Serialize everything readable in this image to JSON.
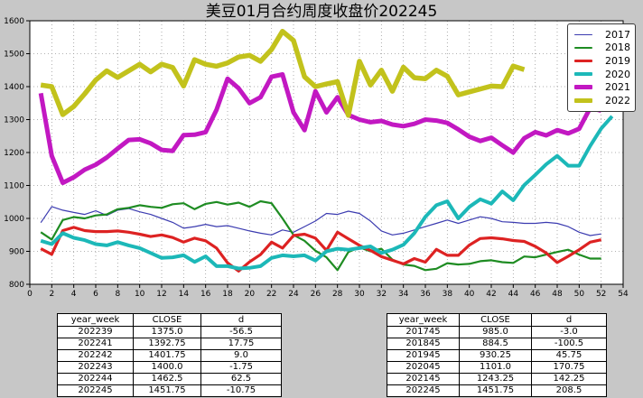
{
  "title": "美豆01月合约周度收盘价202245",
  "colors": {
    "figure_bg": "#c7c7c7",
    "plot_bg": "#ffffff",
    "grid": "#999999",
    "axis": "#000000",
    "tick_label": "#000000",
    "table_bg": "#ffffff",
    "table_border": "#000000"
  },
  "chart_data": {
    "type": "line",
    "title": "美豆01月合约周度收盘价202245",
    "xlim": [
      0,
      54
    ],
    "ylim": [
      800,
      1600
    ],
    "x_tick_step": 2,
    "y_tick_step": 100,
    "grid": true,
    "legend_position": "upper right",
    "series": [
      {
        "name": "2017",
        "color": "#3b3bb0",
        "line_width": 1.2,
        "start_week": 1,
        "values": [
          987,
          1036,
          1025,
          1018,
          1012,
          1023,
          1009,
          1025,
          1030,
          1020,
          1012,
          1000,
          988,
          970,
          975,
          982,
          975,
          978,
          970,
          962,
          955,
          950,
          965,
          958,
          975,
          992,
          1015,
          1012,
          1022,
          1015,
          992,
          962,
          950,
          955,
          965,
          975,
          985,
          995,
          985,
          995,
          1005,
          1000,
          990,
          988,
          985,
          985,
          988,
          985,
          975,
          958,
          948,
          953
        ]
      },
      {
        "name": "2018",
        "color": "#1e8c22",
        "line_width": 2.2,
        "start_week": 1,
        "values": [
          958,
          936,
          995,
          1004,
          1000,
          1009,
          1012,
          1028,
          1032,
          1040,
          1035,
          1032,
          1043,
          1046,
          1028,
          1044,
          1050,
          1042,
          1048,
          1035,
          1052,
          1046,
          1000,
          950,
          932,
          902,
          882,
          843,
          898,
          912,
          900,
          908,
          875,
          860,
          856,
          843,
          847,
          864,
          860,
          862,
          870,
          873,
          867,
          865,
          884.5,
          882,
          890,
          898,
          905,
          890,
          878,
          878
        ]
      },
      {
        "name": "2019",
        "color": "#dd2222",
        "line_width": 3.2,
        "start_week": 1,
        "values": [
          908,
          891,
          963,
          973,
          963,
          960,
          960,
          962,
          958,
          952,
          945,
          950,
          942,
          928,
          940,
          932,
          910,
          865,
          840,
          868,
          890,
          928,
          910,
          948,
          952,
          940,
          903,
          958,
          938,
          918,
          903,
          884,
          873,
          862,
          878,
          867,
          906,
          888,
          888,
          919,
          939,
          941,
          938,
          933,
          930.25,
          915,
          895,
          866,
          885,
          905,
          928,
          935
        ]
      },
      {
        "name": "2020",
        "color": "#1cb8b8",
        "line_width": 4,
        "start_week": 1,
        "values": [
          932,
          922,
          955,
          941,
          934,
          922,
          918,
          928,
          918,
          910,
          895,
          880,
          882,
          888,
          868,
          885,
          855,
          855,
          848,
          850,
          855,
          880,
          888,
          885,
          888,
          872,
          900,
          908,
          905,
          910,
          915,
          895,
          905,
          920,
          955,
          1005,
          1040,
          1052,
          1000,
          1035,
          1058,
          1045,
          1082,
          1055,
          1101,
          1132,
          1164,
          1190,
          1160,
          1160,
          1220,
          1273,
          1310
        ]
      },
      {
        "name": "2021",
        "color": "#c218c2",
        "line_width": 5,
        "start_week": 1,
        "values": [
          1380,
          1190,
          1108,
          1125,
          1148,
          1163,
          1185,
          1212,
          1238,
          1240,
          1228,
          1208,
          1205,
          1253,
          1254,
          1262,
          1330,
          1424,
          1395,
          1350,
          1368,
          1430,
          1437,
          1322,
          1268,
          1386,
          1322,
          1368,
          1314,
          1300,
          1292,
          1296,
          1285,
          1280,
          1287,
          1300,
          1297,
          1290,
          1270,
          1248,
          1235,
          1245,
          1222,
          1200,
          1243.25,
          1262,
          1252,
          1268,
          1258,
          1272,
          1335,
          1327
        ]
      },
      {
        "name": "2022",
        "color": "#c2c21c",
        "line_width": 5.5,
        "start_week": 1,
        "values": [
          1405,
          1400,
          1315,
          1340,
          1378,
          1420,
          1448,
          1428,
          1448,
          1468,
          1445,
          1468,
          1458,
          1402,
          1482,
          1468,
          1462,
          1472,
          1490,
          1495,
          1477,
          1513,
          1568,
          1540,
          1430,
          1400,
          1408,
          1415,
          1313,
          1477,
          1405,
          1450,
          1386,
          1459,
          1427,
          1424,
          1450,
          1431.5,
          1375,
          1384,
          1392.75,
          1401.75,
          1400,
          1462.5,
          1451.75
        ]
      }
    ]
  },
  "tables": [
    {
      "headers": [
        "year_week",
        "CLOSE",
        "d"
      ],
      "rows": [
        [
          "202239",
          "1375.0",
          "-56.5"
        ],
        [
          "202241",
          "1392.75",
          "17.75"
        ],
        [
          "202242",
          "1401.75",
          "9.0"
        ],
        [
          "202243",
          "1400.0",
          "-1.75"
        ],
        [
          "202244",
          "1462.5",
          "62.5"
        ],
        [
          "202245",
          "1451.75",
          "-10.75"
        ]
      ]
    },
    {
      "headers": [
        "year_week",
        "CLOSE",
        "d"
      ],
      "rows": [
        [
          "201745",
          "985.0",
          "-3.0"
        ],
        [
          "201845",
          "884.5",
          "-100.5"
        ],
        [
          "201945",
          "930.25",
          "45.75"
        ],
        [
          "202045",
          "1101.0",
          "170.75"
        ],
        [
          "202145",
          "1243.25",
          "142.25"
        ],
        [
          "202245",
          "1451.75",
          "208.5"
        ]
      ]
    }
  ]
}
